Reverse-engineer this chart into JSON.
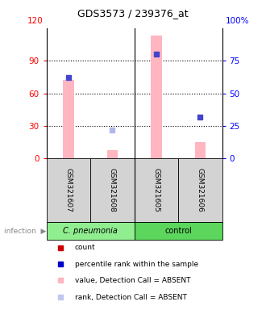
{
  "title": "GDS3573 / 239376_at",
  "samples": [
    "GSM321607",
    "GSM321608",
    "GSM321605",
    "GSM321606"
  ],
  "values_absent": [
    72,
    8,
    113,
    15
  ],
  "rank_absent": [
    null,
    22,
    null,
    null
  ],
  "rank_present": [
    62,
    null,
    80,
    32
  ],
  "bar_color": "#ffb6c1",
  "rank_present_color": "#4444cc",
  "rank_absent_color": "#b0b8e8",
  "left_yticks": [
    0,
    30,
    60,
    90
  ],
  "left_ytick_top": 120,
  "right_yticks": [
    0,
    25,
    50,
    75
  ],
  "right_ytick_top": "100%",
  "ylim_left": [
    0,
    120
  ],
  "ylim_right": [
    0,
    100
  ],
  "grid_lines": [
    30,
    60,
    90
  ],
  "legend_colors": [
    "#cc0000",
    "#0000cc",
    "#ffb6c1",
    "#c0c8f0"
  ],
  "legend_labels": [
    "count",
    "percentile rank within the sample",
    "value, Detection Call = ABSENT",
    "rank, Detection Call = ABSENT"
  ],
  "group1_label": "C. pneumonia",
  "group2_label": "control",
  "group1_color": "#90ee90",
  "group2_color": "#5cd65c",
  "sample_box_color": "#d3d3d3",
  "infection_label": "infection",
  "bar_width": 0.25,
  "marker_size": 4
}
